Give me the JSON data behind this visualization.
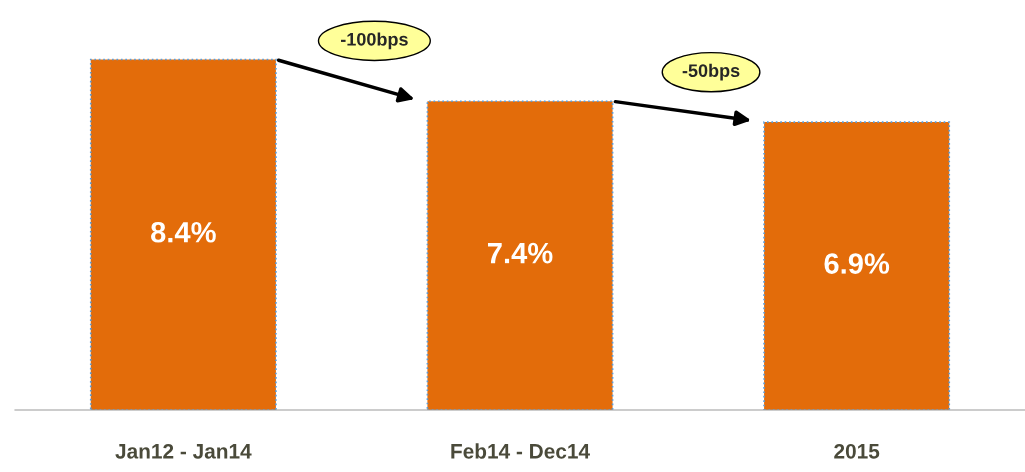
{
  "chart_data": {
    "type": "bar",
    "categories": [
      "Jan12 - Jan14",
      "Feb14 - Dec14",
      "2015"
    ],
    "values": [
      8.4,
      7.4,
      6.9
    ],
    "value_labels": [
      "8.4%",
      "7.4%",
      "6.9%"
    ],
    "color": "#e36c0a",
    "tick_labels": "x",
    "grid": false,
    "legend": false,
    "annotations": [
      "-100bps",
      "-50bps"
    ]
  }
}
